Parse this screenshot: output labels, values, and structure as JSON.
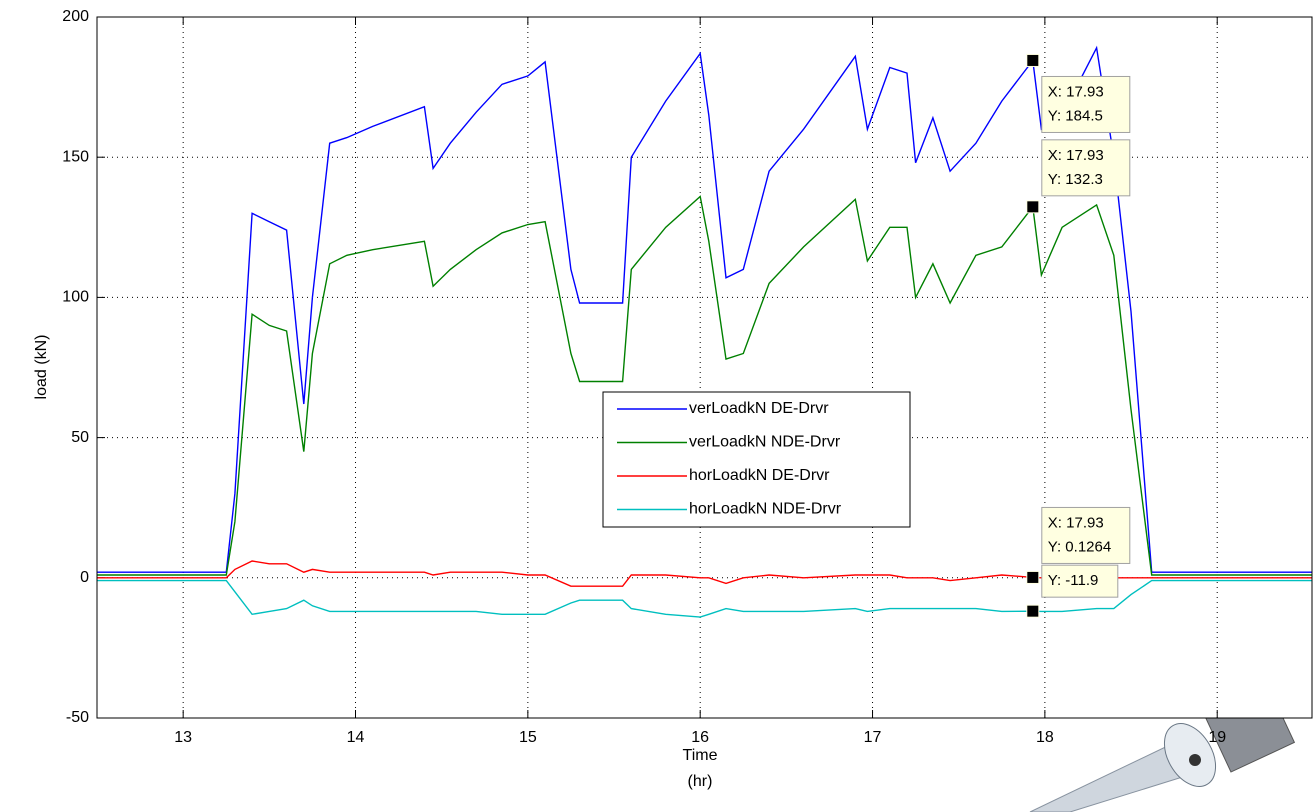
{
  "chart_data": {
    "type": "line",
    "ylabel": "load (kN)",
    "xlabel": [
      "Time",
      "(hr)"
    ],
    "x": [
      12.5,
      13.25,
      13.3,
      13.4,
      13.5,
      13.6,
      13.7,
      13.75,
      13.85,
      13.95,
      14.1,
      14.4,
      14.45,
      14.55,
      14.7,
      14.85,
      15.0,
      15.1,
      15.25,
      15.3,
      15.55,
      15.6,
      15.8,
      16.0,
      16.05,
      16.15,
      16.25,
      16.4,
      16.6,
      16.9,
      16.97,
      17.1,
      17.2,
      17.25,
      17.35,
      17.45,
      17.6,
      17.75,
      17.93,
      17.98,
      18.1,
      18.3,
      18.4,
      18.5,
      18.62,
      19.55
    ],
    "series": [
      {
        "name": "verLoadkN DE-Drvr",
        "color": "#0000ff",
        "values": [
          2,
          2,
          30,
          130,
          127,
          124,
          62,
          100,
          155,
          157,
          161,
          168,
          146,
          155,
          166,
          176,
          179,
          184,
          110,
          98,
          98,
          150,
          170,
          187,
          165,
          107,
          110,
          145,
          160,
          186,
          160,
          182,
          180,
          148,
          164,
          145,
          155,
          170,
          184.5,
          160,
          165,
          189,
          150,
          95,
          2,
          2
        ]
      },
      {
        "name": "verLoadkN NDE-Drvr",
        "color": "#008000",
        "values": [
          1,
          1,
          20,
          94,
          90,
          88,
          45,
          80,
          112,
          115,
          117,
          120,
          104,
          110,
          117,
          123,
          126,
          127,
          80,
          70,
          70,
          110,
          125,
          136,
          120,
          78,
          80,
          105,
          118,
          135,
          113,
          125,
          125,
          100,
          112,
          98,
          115,
          118,
          132.3,
          108,
          125,
          133,
          115,
          60,
          1,
          1
        ]
      },
      {
        "name": "horLoadkN DE-Drvr",
        "color": "#ff0000",
        "values": [
          0,
          0,
          3,
          6,
          5,
          5,
          2,
          3,
          2,
          2,
          2,
          2,
          1,
          2,
          2,
          2,
          1,
          1,
          -3,
          -3,
          -3,
          1,
          1,
          0,
          0,
          -2,
          0,
          1,
          0,
          1,
          1,
          1,
          0,
          0,
          0,
          -1,
          0,
          1,
          0.1264,
          0,
          0,
          0,
          0,
          0,
          0,
          0
        ]
      },
      {
        "name": "horLoadkN NDE-Drvr",
        "color": "#00bfbf",
        "values": [
          -1,
          -1,
          -5,
          -13,
          -12,
          -11,
          -8,
          -10,
          -12,
          -12,
          -12,
          -12,
          -12,
          -12,
          -12,
          -13,
          -13,
          -13,
          -9,
          -8,
          -8,
          -11,
          -13,
          -14,
          -13,
          -11,
          -12,
          -12,
          -12,
          -11,
          -12,
          -11,
          -11,
          -11,
          -11,
          -11,
          -11,
          -12,
          -11.9,
          -12,
          -12,
          -11,
          -11,
          -6,
          -1,
          -1
        ]
      }
    ],
    "xlim": [
      12.5,
      19.55
    ],
    "xticks": [
      13,
      14,
      15,
      16,
      17,
      18,
      19
    ],
    "ylim": [
      -50,
      200
    ],
    "yticks": [
      -50,
      0,
      50,
      100,
      150,
      200
    ],
    "grid": true,
    "datatips": [
      {
        "x": 17.93,
        "y": 184.5,
        "lines": [
          "X: 17.93",
          "Y: 184.5"
        ]
      },
      {
        "x": 17.93,
        "y": 132.3,
        "lines": [
          "X: 17.93",
          "Y: 132.3"
        ]
      },
      {
        "x": 17.93,
        "y": 0.1264,
        "lines": [
          "X: 17.93",
          "Y: 0.1264"
        ]
      },
      {
        "x": 17.93,
        "y": -11.9,
        "lines": [
          "Y: -11.9"
        ]
      }
    ]
  }
}
